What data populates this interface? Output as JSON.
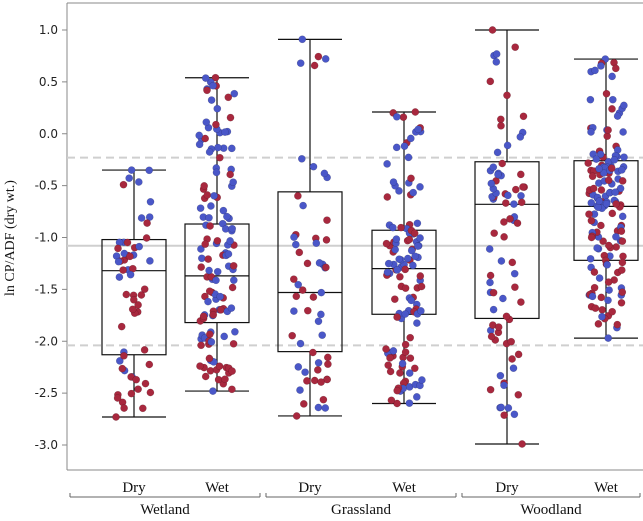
{
  "chart_data": {
    "type": "boxplot",
    "ylabel": "ln CP/ADF (dry wt.)",
    "ylim": [
      -3.3,
      1.2
    ],
    "y_ticks": [
      1.0,
      0.5,
      0.0,
      -0.5,
      -1.0,
      -1.5,
      -2.0,
      -2.5,
      -3.0
    ],
    "y_tick_labels": [
      "1.0",
      "0.5",
      "0.0",
      "-0.5",
      "-1.0",
      "-1.5",
      "-2.0",
      "-2.5",
      "-3.0"
    ],
    "reference_lines": {
      "solid": -1.08,
      "dashed": [
        -0.23,
        -2.04
      ]
    },
    "point_colors": {
      "blue": "#4a57c8",
      "red": "#a8283e"
    },
    "groups": [
      {
        "name": "Wetland",
        "categories": [
          "Dry",
          "Wet"
        ]
      },
      {
        "name": "Grassland",
        "categories": [
          "Dry",
          "Wet"
        ]
      },
      {
        "name": "Woodland",
        "categories": [
          "Dry",
          "Wet"
        ]
      }
    ],
    "boxes": [
      {
        "group": "Wetland",
        "category": "Dry",
        "whisker_low": -2.73,
        "q1": -2.13,
        "median": -1.32,
        "q3": -1.02,
        "whisker_high": -0.35,
        "n_points": 60
      },
      {
        "group": "Wetland",
        "category": "Wet",
        "whisker_low": -2.48,
        "q1": -1.82,
        "median": -1.37,
        "q3": -0.87,
        "whisker_high": 0.54,
        "n_points": 130
      },
      {
        "group": "Grassland",
        "category": "Dry",
        "whisker_low": -2.72,
        "q1": -2.1,
        "median": -1.53,
        "q3": -0.56,
        "whisker_high": 0.91,
        "n_points": 55
      },
      {
        "group": "Grassland",
        "category": "Wet",
        "whisker_low": -2.6,
        "q1": -1.74,
        "median": -1.3,
        "q3": -0.93,
        "whisker_high": 0.21,
        "n_points": 120
      },
      {
        "group": "Woodland",
        "category": "Dry",
        "whisker_low": -2.99,
        "q1": -1.78,
        "median": -0.68,
        "q3": -0.27,
        "whisker_high": 1.0,
        "n_points": 80
      },
      {
        "group": "Woodland",
        "category": "Wet",
        "whisker_low": -1.97,
        "q1": -1.22,
        "median": -0.7,
        "q3": -0.26,
        "whisker_high": 0.72,
        "n_points": 150
      }
    ]
  }
}
